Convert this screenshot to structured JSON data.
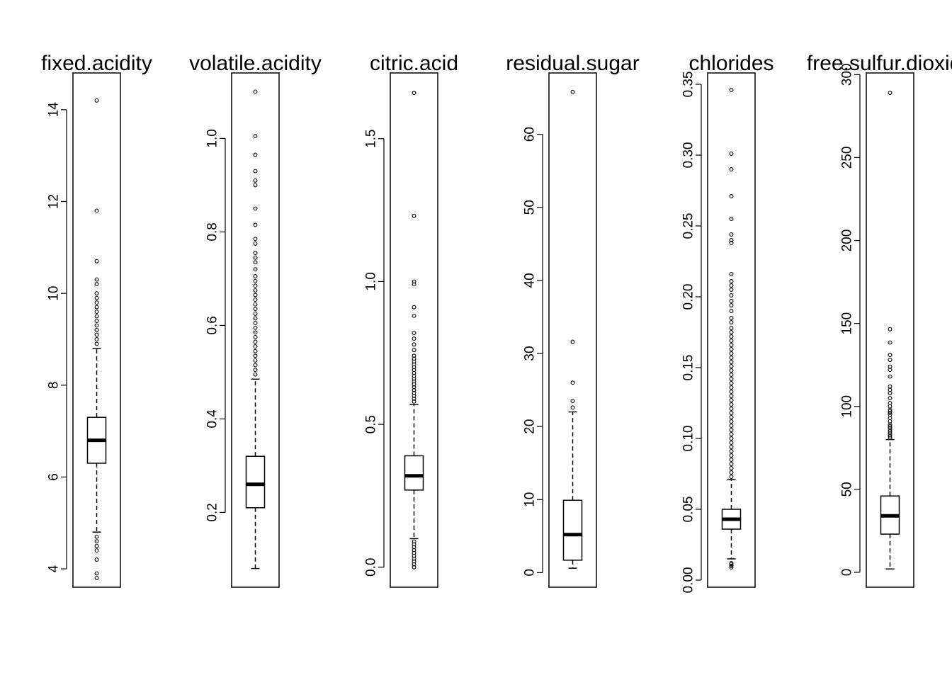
{
  "chart_data": [
    {
      "type": "boxplot",
      "title": "fixed.acidity",
      "ylim": [
        3.6,
        14.8
      ],
      "yticks": [
        4,
        6,
        8,
        10,
        12,
        14
      ],
      "tick_labels": [
        "4",
        "6",
        "8",
        "10",
        "12",
        "14"
      ],
      "box": {
        "whisker_low": 4.8,
        "q1": 6.3,
        "median": 6.8,
        "q3": 7.3,
        "whisker_high": 8.8
      },
      "outliers": [
        14.2,
        11.8,
        10.7,
        10.3,
        10.2,
        10.0,
        9.9,
        9.8,
        9.7,
        9.6,
        9.5,
        9.4,
        9.3,
        9.2,
        9.1,
        9.0,
        8.9,
        4.7,
        4.6,
        4.5,
        4.4,
        4.2,
        3.9,
        3.8
      ]
    },
    {
      "type": "boxplot",
      "title": "volatile.acidity",
      "ylim": [
        0.04,
        1.14
      ],
      "yticks": [
        0.2,
        0.4,
        0.6,
        0.8,
        1.0
      ],
      "tick_labels": [
        "0.2",
        "0.4",
        "0.6",
        "0.8",
        "1.0"
      ],
      "box": {
        "whisker_low": 0.08,
        "q1": 0.21,
        "median": 0.26,
        "q3": 0.32,
        "whisker_high": 0.485
      },
      "outliers": [
        1.1,
        1.005,
        0.965,
        0.93,
        0.91,
        0.9,
        0.85,
        0.815,
        0.785,
        0.775,
        0.755,
        0.745,
        0.735,
        0.72,
        0.705,
        0.695,
        0.685,
        0.675,
        0.665,
        0.655,
        0.645,
        0.635,
        0.625,
        0.615,
        0.605,
        0.595,
        0.585,
        0.575,
        0.565,
        0.555,
        0.545,
        0.535,
        0.525,
        0.515,
        0.505,
        0.495
      ]
    },
    {
      "type": "boxplot",
      "title": "citric.acid",
      "ylim": [
        -0.07,
        1.73
      ],
      "yticks": [
        0.0,
        0.5,
        1.0,
        1.5
      ],
      "tick_labels": [
        "0.0",
        "0.5",
        "1.0",
        "1.5"
      ],
      "box": {
        "whisker_low": 0.1,
        "q1": 0.27,
        "median": 0.32,
        "q3": 0.39,
        "whisker_high": 0.57
      },
      "outliers": [
        1.66,
        1.23,
        1.0,
        0.99,
        0.91,
        0.88,
        0.82,
        0.8,
        0.78,
        0.76,
        0.74,
        0.73,
        0.72,
        0.71,
        0.7,
        0.69,
        0.68,
        0.67,
        0.66,
        0.65,
        0.64,
        0.63,
        0.62,
        0.61,
        0.6,
        0.59,
        0.58,
        0.09,
        0.08,
        0.07,
        0.06,
        0.05,
        0.04,
        0.03,
        0.02,
        0.01,
        0.0
      ]
    },
    {
      "type": "boxplot",
      "title": "residual.sugar",
      "ylim": [
        -2.0,
        68.4
      ],
      "yticks": [
        0,
        10,
        20,
        30,
        40,
        50,
        60
      ],
      "tick_labels": [
        "0",
        "10",
        "20",
        "30",
        "40",
        "50",
        "60"
      ],
      "box": {
        "whisker_low": 0.6,
        "q1": 1.7,
        "median": 5.2,
        "q3": 9.9,
        "whisker_high": 22.0
      },
      "outliers": [
        65.8,
        31.6,
        26.0,
        23.5,
        22.6
      ]
    },
    {
      "type": "boxplot",
      "title": "chlorides",
      "ylim": [
        -0.005,
        0.358
      ],
      "yticks": [
        0.0,
        0.05,
        0.1,
        0.15,
        0.2,
        0.25,
        0.3,
        0.35
      ],
      "tick_labels": [
        "0.00",
        "0.05",
        "0.10",
        "0.15",
        "0.20",
        "0.25",
        "0.30",
        "0.35"
      ],
      "box": {
        "whisker_low": 0.015,
        "q1": 0.036,
        "median": 0.043,
        "q3": 0.05,
        "whisker_high": 0.071
      },
      "outliers": [
        0.346,
        0.301,
        0.29,
        0.271,
        0.255,
        0.244,
        0.24,
        0.238,
        0.216,
        0.211,
        0.208,
        0.205,
        0.201,
        0.197,
        0.194,
        0.19,
        0.185,
        0.182,
        0.178,
        0.175,
        0.172,
        0.169,
        0.166,
        0.163,
        0.16,
        0.157,
        0.154,
        0.151,
        0.148,
        0.145,
        0.142,
        0.139,
        0.136,
        0.133,
        0.13,
        0.127,
        0.124,
        0.121,
        0.118,
        0.115,
        0.112,
        0.109,
        0.106,
        0.103,
        0.1,
        0.097,
        0.094,
        0.091,
        0.088,
        0.085,
        0.082,
        0.079,
        0.076,
        0.073,
        0.012,
        0.011,
        0.01,
        0.009
      ]
    },
    {
      "type": "boxplot",
      "title": "free.sulfur.dioxide",
      "ylim": [
        -9.0,
        301.0
      ],
      "yticks": [
        0,
        50,
        100,
        150,
        200,
        250,
        300
      ],
      "tick_labels": [
        "0",
        "50",
        "100",
        "150",
        "200",
        "250",
        "300"
      ],
      "box": {
        "whisker_low": 2.0,
        "q1": 23.0,
        "median": 34.0,
        "q3": 46.0,
        "whisker_high": 80.0
      },
      "outliers": [
        289.0,
        146.5,
        138.5,
        131.0,
        128.0,
        124.0,
        122.0,
        118.0,
        112.0,
        110.0,
        108.0,
        105.0,
        102.0,
        100.0,
        98.0,
        97.0,
        96.0,
        95.0,
        93.0,
        91.0,
        89.0,
        88.0,
        87.0,
        86.0,
        85.0,
        84.0,
        83.0,
        82.0,
        81.0
      ]
    }
  ]
}
